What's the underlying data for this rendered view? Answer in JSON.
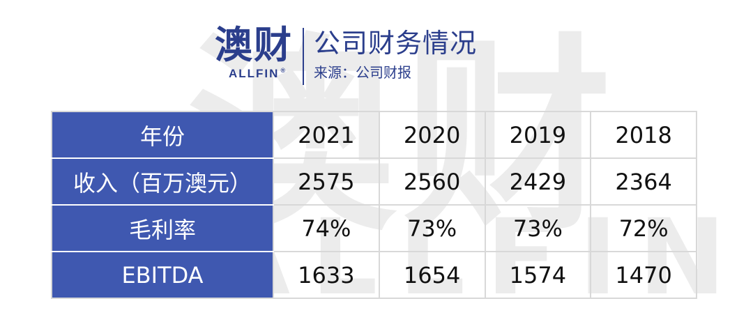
{
  "logo": {
    "cn": "澳财",
    "en": "ALLFIN",
    "reg": "®"
  },
  "watermark": {
    "cn": "澳财",
    "en": "ALLFIN"
  },
  "title": "公司财务情况",
  "source": "来源：公司财报",
  "table": {
    "header": {
      "label": "年份",
      "values": [
        "2021",
        "2020",
        "2019",
        "2018"
      ]
    },
    "rows": [
      {
        "label": "收入（百万澳元）",
        "values": [
          "2575",
          "2560",
          "2429",
          "2364"
        ]
      },
      {
        "label": "毛利率",
        "values": [
          "74%",
          "73%",
          "73%",
          "72%"
        ]
      },
      {
        "label": "EBITDA",
        "values": [
          "1633",
          "1654",
          "1574",
          "1470"
        ]
      }
    ]
  },
  "colors": {
    "brand": "#2b3e8c",
    "label_bg": "#3f58b0",
    "grid": "#d8d8d8"
  }
}
